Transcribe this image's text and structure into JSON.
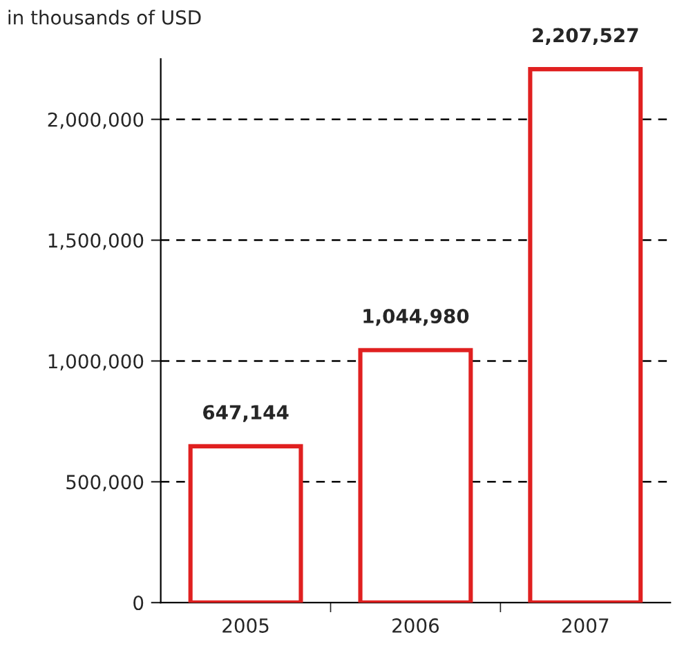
{
  "chart_data": {
    "type": "bar",
    "subtitle": "in thousands of USD",
    "categories": [
      "2005",
      "2006",
      "2007"
    ],
    "values": [
      647144,
      1044980,
      2207527
    ],
    "value_labels": [
      "647,144",
      "1,044,980",
      "2,207,527"
    ],
    "color": "#e02020",
    "ylim": [
      0,
      2250000
    ],
    "yticks": [
      0,
      {
        "value": 500000,
        "label": "500,000"
      },
      {
        "value": 1000000,
        "label": "1,000,000"
      },
      {
        "value": 1500000,
        "label": "1,500,000"
      },
      {
        "value": 2000000,
        "label": "2,000,000"
      }
    ],
    "grid": "y",
    "line_style": "dashed"
  }
}
